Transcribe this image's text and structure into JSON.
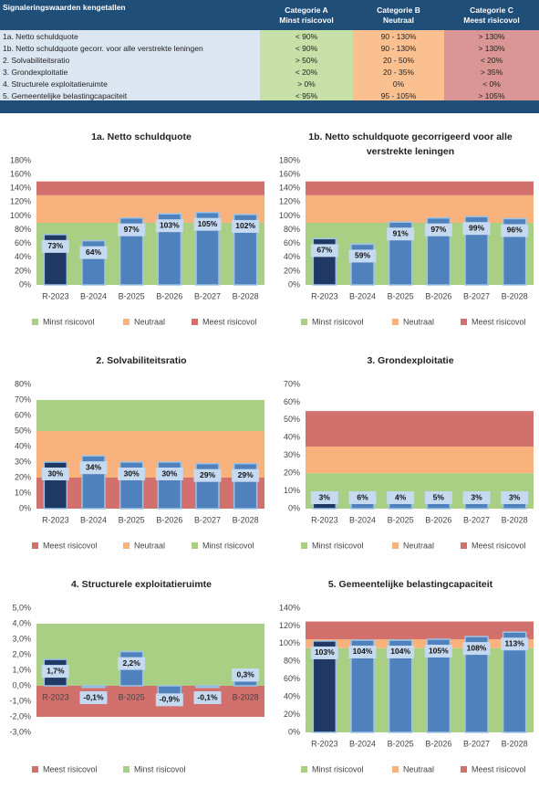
{
  "table": {
    "header": [
      "Signaleringswaarden kengetallen",
      [
        "Categorie A",
        "Minst risicovol"
      ],
      [
        "Categorie B",
        "Neutraal"
      ],
      [
        "Categorie C",
        "Meest risicovol"
      ]
    ],
    "rows": [
      [
        "1a. Netto schuldquote",
        "< 90%",
        "90 - 130%",
        "> 130%"
      ],
      [
        "1b. Netto schuldquote gecorr. voor alle verstrekte leningen",
        "< 90%",
        "90 - 130%",
        "> 130%"
      ],
      [
        "2.  Solvabiliteitsratio",
        "> 50%",
        "20 - 50%",
        "< 20%"
      ],
      [
        "3.  Grondexploitatie",
        "< 20%",
        "20 - 35%",
        "> 35%"
      ],
      [
        "4.  Structurele exploitatieruimte",
        "> 0%",
        "0%",
        "< 0%"
      ],
      [
        "5.  Gemeentelijke belastingcapaciteit",
        "< 95%",
        "95 - 105%",
        "> 105%"
      ]
    ]
  },
  "chart_data": [
    {
      "type": "bar",
      "title": "1a. Netto schuldquote",
      "categories": [
        "R-2023",
        "B-2024",
        "B-2025",
        "B-2026",
        "B-2027",
        "B-2028"
      ],
      "values": [
        73,
        64,
        97,
        103,
        105,
        102
      ],
      "value_labels": [
        "73%",
        "64%",
        "97%",
        "103%",
        "105%",
        "102%"
      ],
      "bar_colors": [
        "#1f3864",
        "#4f81bd",
        "#4f81bd",
        "#4f81bd",
        "#4f81bd",
        "#4f81bd"
      ],
      "series": [
        {
          "name": "Minst risicovol",
          "color": "#a9cf85",
          "value": 90
        },
        {
          "name": "Neutraal",
          "color": "#f9b27b",
          "value": 40
        },
        {
          "name": "Meest risicovol",
          "color": "#d2706d",
          "value": 20
        }
      ],
      "ylim": [
        0,
        180
      ],
      "yticks": [
        {
          "value": 0,
          "label": "0%"
        },
        {
          "value": 20,
          "label": "20%"
        },
        {
          "value": 40,
          "label": "40%"
        },
        {
          "value": 60,
          "label": "60%"
        },
        {
          "value": 80,
          "label": "80%"
        },
        {
          "value": 100,
          "label": "100%"
        },
        {
          "value": 120,
          "label": "120%"
        },
        {
          "value": 140,
          "label": "140%"
        },
        {
          "value": 160,
          "label": "160%"
        },
        {
          "value": 180,
          "label": "180%"
        }
      ]
    },
    {
      "type": "bar",
      "title": "1b. Netto schuldquote gecorrigeerd voor alle verstrekte leningen",
      "categories": [
        "R-2023",
        "B-2024",
        "B-2025",
        "B-2026",
        "B-2027",
        "B-2028"
      ],
      "values": [
        67,
        59,
        91,
        97,
        99,
        96
      ],
      "value_labels": [
        "67%",
        "59%",
        "91%",
        "97%",
        "99%",
        "96%"
      ],
      "bar_colors": [
        "#1f3864",
        "#4f81bd",
        "#4f81bd",
        "#4f81bd",
        "#4f81bd",
        "#4f81bd"
      ],
      "series": [
        {
          "name": "Minst risicovol",
          "color": "#a9cf85",
          "value": 90
        },
        {
          "name": "Neutraal",
          "color": "#f9b27b",
          "value": 40
        },
        {
          "name": "Meest risicovol",
          "color": "#d2706d",
          "value": 20
        }
      ],
      "ylim": [
        0,
        180
      ],
      "yticks": [
        {
          "value": 0,
          "label": "0%"
        },
        {
          "value": 20,
          "label": "20%"
        },
        {
          "value": 40,
          "label": "40%"
        },
        {
          "value": 60,
          "label": "60%"
        },
        {
          "value": 80,
          "label": "80%"
        },
        {
          "value": 100,
          "label": "100%"
        },
        {
          "value": 120,
          "label": "120%"
        },
        {
          "value": 140,
          "label": "140%"
        },
        {
          "value": 160,
          "label": "160%"
        },
        {
          "value": 180,
          "label": "180%"
        }
      ]
    },
    {
      "type": "bar",
      "title": "2. Solvabiliteitsratio",
      "categories": [
        "R-2023",
        "B-2024",
        "B-2025",
        "B-2026",
        "B-2027",
        "B-2028"
      ],
      "values": [
        30,
        34,
        30,
        30,
        29,
        29
      ],
      "value_labels": [
        "30%",
        "34%",
        "30%",
        "30%",
        "29%",
        "29%"
      ],
      "bar_colors": [
        "#1f3864",
        "#4f81bd",
        "#4f81bd",
        "#4f81bd",
        "#4f81bd",
        "#4f81bd"
      ],
      "series": [
        {
          "name": "Meest risicovol",
          "color": "#d2706d",
          "value": 20
        },
        {
          "name": "Neutraal",
          "color": "#f9b27b",
          "value": 30
        },
        {
          "name": "Minst risicovol",
          "color": "#a9cf85",
          "value": 20
        }
      ],
      "ylim": [
        0,
        80
      ],
      "yticks": [
        {
          "value": 0,
          "label": "0%"
        },
        {
          "value": 10,
          "label": "10%"
        },
        {
          "value": 20,
          "label": "20%"
        },
        {
          "value": 30,
          "label": "30%"
        },
        {
          "value": 40,
          "label": "40%"
        },
        {
          "value": 50,
          "label": "50%"
        },
        {
          "value": 60,
          "label": "60%"
        },
        {
          "value": 70,
          "label": "70%"
        },
        {
          "value": 80,
          "label": "80%"
        }
      ]
    },
    {
      "type": "bar",
      "title": "3. Grondexploitatie",
      "categories": [
        "R-2023",
        "B-2024",
        "B-2025",
        "B-2026",
        "B-2027",
        "B-2028"
      ],
      "values": [
        3,
        6,
        4,
        5,
        3,
        3
      ],
      "value_labels": [
        "3%",
        "6%",
        "4%",
        "5%",
        "3%",
        "3%"
      ],
      "bar_colors": [
        "#1f3864",
        "#4f81bd",
        "#4f81bd",
        "#4f81bd",
        "#4f81bd",
        "#4f81bd"
      ],
      "series": [
        {
          "name": "Minst risicovol",
          "color": "#a9cf85",
          "value": 20
        },
        {
          "name": "Neutraal",
          "color": "#f9b27b",
          "value": 15
        },
        {
          "name": "Meest risicovol",
          "color": "#d2706d",
          "value": 20
        }
      ],
      "ylim": [
        0,
        70
      ],
      "yticks": [
        {
          "value": 0,
          "label": "0%"
        },
        {
          "value": 10,
          "label": "10%"
        },
        {
          "value": 20,
          "label": "20%"
        },
        {
          "value": 30,
          "label": "30%"
        },
        {
          "value": 40,
          "label": "40%"
        },
        {
          "value": 50,
          "label": "50%"
        },
        {
          "value": 60,
          "label": "60%"
        },
        {
          "value": 70,
          "label": "70%"
        }
      ]
    },
    {
      "type": "bar",
      "title": "4. Structurele exploitatieruimte",
      "categories": [
        "R-2023",
        "B-2024",
        "B-2025",
        "B-2026",
        "B-2027",
        "B-2028"
      ],
      "values": [
        1.7,
        -0.1,
        2.2,
        -0.9,
        -0.1,
        0.3
      ],
      "value_labels": [
        "1,7%",
        "-0,1%",
        "2,2%",
        "-0,9%",
        "-0,1%",
        "0,3%"
      ],
      "bar_colors": [
        "#1f3864",
        "#4f81bd",
        "#4f81bd",
        "#4f81bd",
        "#4f81bd",
        "#4f81bd"
      ],
      "series": [
        {
          "name": "Meest risicovol",
          "color": "#d2706d",
          "value": -2
        },
        {
          "name": "Minst risicovol",
          "color": "#a9cf85",
          "value": 4
        }
      ],
      "ylim": [
        -3,
        5
      ],
      "yticks": [
        {
          "value": -3,
          "label": "-3,0%"
        },
        {
          "value": -2,
          "label": "-2,0%"
        },
        {
          "value": -1,
          "label": "-1,0%"
        },
        {
          "value": 0,
          "label": "0,0%"
        },
        {
          "value": 1,
          "label": "1,0%"
        },
        {
          "value": 2,
          "label": "2,0%"
        },
        {
          "value": 3,
          "label": "3,0%"
        },
        {
          "value": 4,
          "label": "4,0%"
        },
        {
          "value": 5,
          "label": "5,0%"
        }
      ]
    },
    {
      "type": "bar",
      "title": "5. Gemeentelijke belastingcapaciteit",
      "categories": [
        "R-2023",
        "B-2024",
        "B-2025",
        "B-2026",
        "B-2027",
        "B-2028"
      ],
      "values": [
        103,
        104,
        104,
        105,
        108,
        113
      ],
      "value_labels": [
        "103%",
        "104%",
        "104%",
        "105%",
        "108%",
        "113%"
      ],
      "bar_colors": [
        "#1f3864",
        "#4f81bd",
        "#4f81bd",
        "#4f81bd",
        "#4f81bd",
        "#4f81bd"
      ],
      "series": [
        {
          "name": "Minst risicovol",
          "color": "#a9cf85",
          "value": 95
        },
        {
          "name": "Neutraal",
          "color": "#f9b27b",
          "value": 10
        },
        {
          "name": "Meest risicovol",
          "color": "#d2706d",
          "value": 20
        }
      ],
      "ylim": [
        0,
        140
      ],
      "yticks": [
        {
          "value": 0,
          "label": "0%"
        },
        {
          "value": 20,
          "label": "20%"
        },
        {
          "value": 40,
          "label": "40%"
        },
        {
          "value": 60,
          "label": "60%"
        },
        {
          "value": 80,
          "label": "80%"
        },
        {
          "value": 100,
          "label": "100%"
        },
        {
          "value": 120,
          "label": "120%"
        },
        {
          "value": 140,
          "label": "140%"
        }
      ]
    }
  ]
}
